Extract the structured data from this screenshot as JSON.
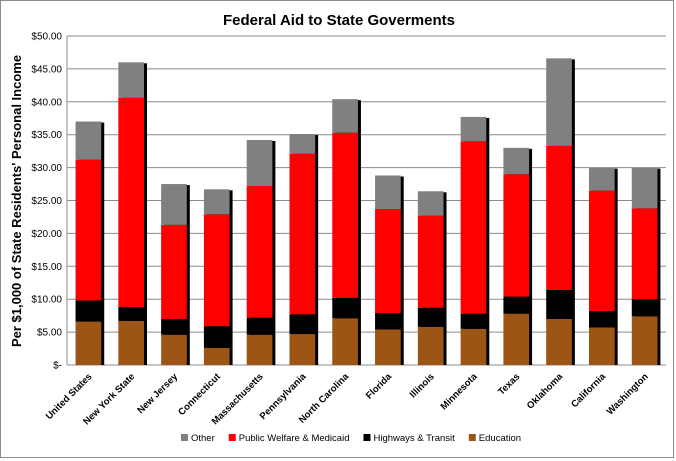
{
  "chart_data": {
    "type": "bar",
    "stacked": true,
    "title": "Federal Aid to State Goverments",
    "ylabel": "Per $1,000 of State Residents' Personal Income",
    "xlabel": "",
    "ylim": [
      0,
      50
    ],
    "y_ticks": [
      "$-",
      "$5.00",
      "$10.00",
      "$15.00",
      "$20.00",
      "$25.00",
      "$30.00",
      "$35.00",
      "$40.00",
      "$45.00",
      "$50.00"
    ],
    "grid": true,
    "legend_position": "bottom",
    "categories": [
      "United States",
      "New York State",
      "New Jersey",
      "Connecticut",
      "Massachusetts",
      "Pennsylvania",
      "North Carolina",
      "Florida",
      "Illinois",
      "Minnesota",
      "Texas",
      "Oklahoma",
      "California",
      "Washington"
    ],
    "series": [
      {
        "name": "Education",
        "color": "#9c5514",
        "values": [
          6.6,
          6.7,
          4.6,
          2.6,
          4.6,
          4.7,
          7.1,
          5.4,
          5.8,
          5.5,
          7.8,
          7.0,
          5.7,
          7.4
        ]
      },
      {
        "name": "Highways & Transit",
        "color": "#000000",
        "values": [
          3.2,
          2.1,
          2.4,
          3.3,
          2.6,
          3.0,
          3.1,
          2.5,
          2.9,
          2.3,
          2.6,
          4.4,
          2.5,
          2.6
        ]
      },
      {
        "name": "Public Welfare & Medicaid",
        "color": "#fe0000",
        "values": [
          21.4,
          31.8,
          14.3,
          17.0,
          20.0,
          24.4,
          25.1,
          15.8,
          14.0,
          26.2,
          18.6,
          21.9,
          18.3,
          13.8
        ]
      },
      {
        "name": "Other",
        "color": "#808080",
        "values": [
          5.8,
          5.4,
          6.2,
          3.8,
          7.0,
          3.0,
          5.1,
          5.1,
          3.7,
          3.7,
          4.0,
          13.3,
          3.5,
          6.2
        ]
      }
    ]
  }
}
